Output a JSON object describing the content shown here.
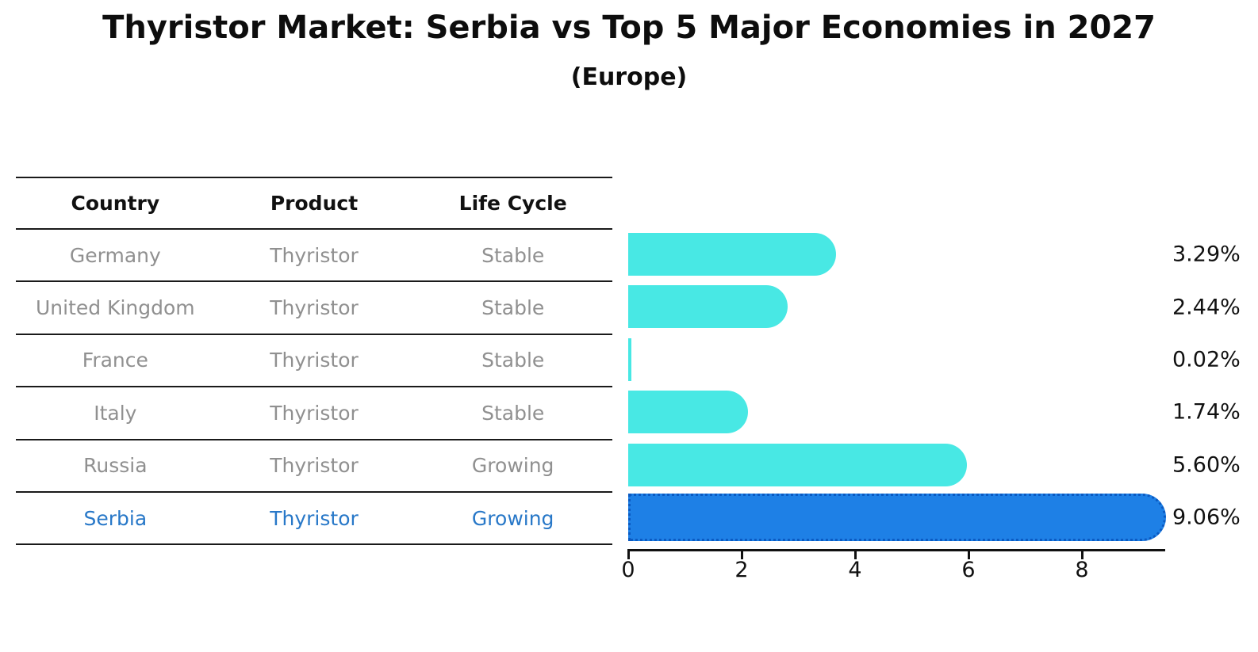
{
  "title": "Thyristor Market: Serbia vs Top 5 Major Economies in 2027",
  "subtitle": "(Europe)",
  "table": {
    "headers": [
      "Country",
      "Product",
      "Life Cycle"
    ],
    "rows": [
      {
        "country": "Germany",
        "product": "Thyristor",
        "life_cycle": "Stable",
        "highlight": false
      },
      {
        "country": "United Kingdom",
        "product": "Thyristor",
        "life_cycle": "Stable",
        "highlight": false
      },
      {
        "country": "France",
        "product": "Thyristor",
        "life_cycle": "Stable",
        "highlight": false
      },
      {
        "country": "Italy",
        "product": "Thyristor",
        "life_cycle": "Stable",
        "highlight": false
      },
      {
        "country": "Russia",
        "product": "Thyristor",
        "life_cycle": "Growing",
        "highlight": false
      },
      {
        "country": "Serbia",
        "product": "Thyristor",
        "life_cycle": "Growing",
        "highlight": true
      }
    ]
  },
  "chart_data": {
    "type": "bar",
    "orientation": "horizontal",
    "title": "Thyristor Market: Serbia vs Top 5 Major Economies in 2027",
    "subtitle": "(Europe)",
    "categories": [
      "Germany",
      "United Kingdom",
      "France",
      "Italy",
      "Russia",
      "Serbia"
    ],
    "values": [
      3.29,
      2.44,
      0.02,
      1.74,
      5.6,
      9.06
    ],
    "value_labels": [
      "3.29%",
      "2.44%",
      "0.02%",
      "1.74%",
      "5.60%",
      "9.06%"
    ],
    "xlim": [
      0,
      9.44
    ],
    "xticks": [
      0,
      2,
      4,
      6,
      8
    ],
    "grid": false,
    "legend": "none",
    "highlight_index": 5
  },
  "colors": {
    "bar": "#48E8E4",
    "highlight_bar": "#1E80E6",
    "highlight_border": "#0B5AC2",
    "highlight_text": "#2878C8",
    "table_text": "#909090",
    "heading_text": "#111111",
    "line": "#1A1A1A"
  }
}
